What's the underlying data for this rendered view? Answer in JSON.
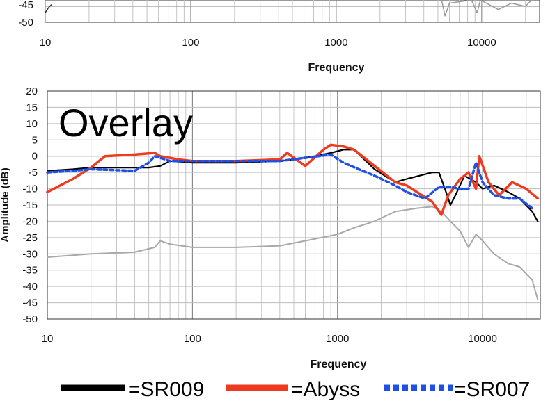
{
  "chart_data": [
    {
      "id": "top",
      "type": "line",
      "title": "",
      "xlabel": "Frequency",
      "xscale": "log",
      "xlim": [
        10,
        25000
      ],
      "x_ticks": [
        10,
        100,
        1000,
        10000
      ],
      "y_ticks_visible": [
        -45,
        -50
      ],
      "ylim_visible": [
        -50,
        -43
      ],
      "series": [
        {
          "name": "top-residual-black",
          "color": "#333333",
          "x": [
            10,
            10.5,
            11
          ],
          "y": [
            -47,
            -45.5,
            -44.5
          ]
        },
        {
          "name": "top-gray-bundle",
          "color": "#999999",
          "x": [
            5300,
            5600,
            6000,
            8500,
            9300,
            9800,
            13000,
            16000,
            20000,
            22000
          ],
          "y": [
            -43,
            -48,
            -44,
            -43,
            -47,
            -43,
            -46,
            -44,
            -45,
            -43
          ]
        }
      ]
    },
    {
      "id": "overlay",
      "type": "line",
      "title": "Overlay",
      "xlabel": "Frequency",
      "ylabel": "Amplitude (dB)",
      "xscale": "log",
      "xlim": [
        10,
        25000
      ],
      "ylim": [
        -50,
        20
      ],
      "x_ticks": [
        10,
        100,
        1000,
        10000
      ],
      "y_ticks": [
        20,
        15,
        10,
        5,
        0,
        -5,
        -10,
        -15,
        -20,
        -25,
        -30,
        -35,
        -40,
        -45,
        -50
      ],
      "grid": true,
      "series": [
        {
          "name": "gray-group",
          "color": "#a8a8a8",
          "x": [
            10,
            20,
            40,
            55,
            60,
            70,
            100,
            200,
            400,
            600,
            1000,
            1300,
            1800,
            2500,
            3500,
            4500,
            5200,
            6000,
            7000,
            8000,
            9000,
            10000,
            12000,
            15000,
            18000,
            22000,
            24000
          ],
          "y": [
            -31,
            -30,
            -29.5,
            -28,
            -26,
            -27,
            -28,
            -28,
            -27.5,
            -26,
            -24,
            -22,
            -20,
            -17,
            -16,
            -15.5,
            -17,
            -20,
            -23,
            -28,
            -24,
            -26,
            -30,
            -33,
            -34,
            -38,
            -44
          ]
        },
        {
          "name": "SR009",
          "label": "=SR009",
          "color": "#000000",
          "x": [
            10,
            15,
            20,
            40,
            50,
            60,
            70,
            100,
            200,
            400,
            500,
            700,
            900,
            1100,
            1300,
            1800,
            2500,
            3000,
            4500,
            5000,
            5500,
            6000,
            6500,
            7500,
            9000,
            10000,
            12000,
            15000,
            18000,
            22000,
            24000
          ],
          "y": [
            -4.5,
            -4,
            -3.5,
            -3.5,
            -3.5,
            -3,
            -1.5,
            -2,
            -2,
            -1.5,
            -1,
            0,
            1,
            2,
            2,
            -4,
            -8,
            -7,
            -5,
            -5,
            -10,
            -15,
            -12,
            -6,
            -8,
            -10,
            -9,
            -11,
            -13,
            -17,
            -20
          ]
        },
        {
          "name": "Abyss",
          "label": "=Abyss",
          "color": "#ee3a1e",
          "x": [
            10,
            15,
            20,
            25,
            40,
            55,
            60,
            80,
            100,
            200,
            400,
            450,
            600,
            800,
            900,
            1100,
            1300,
            1800,
            2500,
            3000,
            4500,
            5200,
            5800,
            7000,
            8000,
            9000,
            9500,
            11000,
            13000,
            16000,
            20000,
            24000
          ],
          "y": [
            -11,
            -7,
            -3.5,
            0,
            0.5,
            1,
            0,
            -1,
            -1.5,
            -1.5,
            -1,
            1,
            -3,
            2,
            3.5,
            3,
            2,
            -3,
            -8,
            -9,
            -14,
            -18,
            -12,
            -7,
            -5,
            -10,
            0,
            -8,
            -12,
            -8,
            -10,
            -13
          ]
        },
        {
          "name": "SR007",
          "label": "=SR007",
          "color": "#1e50e6",
          "x": [
            10,
            15,
            20,
            40,
            50,
            55,
            60,
            70,
            100,
            200,
            400,
            600,
            900,
            1100,
            1400,
            1800,
            2500,
            3000,
            4000,
            5000,
            6000,
            7000,
            8000,
            9000,
            10000,
            12000,
            15000,
            18000,
            22000
          ],
          "y": [
            -5,
            -4.5,
            -4,
            -4.5,
            -2,
            0,
            -0.5,
            -1.5,
            -1.5,
            -1.5,
            -1.5,
            -0.5,
            0.5,
            -2,
            -4,
            -6,
            -9,
            -11,
            -13,
            -9.5,
            -9.5,
            -10,
            -10,
            -2,
            -8,
            -12,
            -13,
            -13,
            -16
          ]
        }
      ]
    }
  ],
  "legend": [
    {
      "label": "=SR009",
      "style": "solid",
      "color": "#000000"
    },
    {
      "label": "=Abyss",
      "style": "solid",
      "color": "#ee3a1e"
    },
    {
      "label": "=SR007",
      "style": "dotted",
      "color": "#1e50e6"
    }
  ]
}
